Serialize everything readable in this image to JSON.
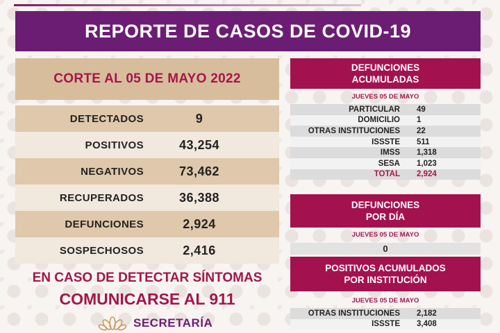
{
  "title": "REPORTE DE CASOS DE COVID-19",
  "cutoff": "CORTE AL 05 DE MAYO 2022",
  "stats": [
    {
      "label": "DETECTADOS",
      "value": "9"
    },
    {
      "label": "POSITIVOS",
      "value": "43,254"
    },
    {
      "label": "NEGATIVOS",
      "value": "73,462"
    },
    {
      "label": "RECUPERADOS",
      "value": "36,388"
    },
    {
      "label": "DEFUNCIONES",
      "value": "2,924"
    },
    {
      "label": "SOSPECHOSOS",
      "value": "2,416"
    }
  ],
  "warning": {
    "line1": "EN CASO DE DETECTAR SÍNTOMAS",
    "line2": "COMUNICARSE AL 911"
  },
  "logo": {
    "text": "SECRETARÍA"
  },
  "deaths_accum": {
    "title_l1": "DEFUNCIONES",
    "title_l2": "ACUMULADAS",
    "date": "JUEVES 05 DE MAYO",
    "rows": [
      {
        "label": "PARTICULAR",
        "value": "49"
      },
      {
        "label": "DOMICILIO",
        "value": "1"
      },
      {
        "label": "OTRAS INSTITUCIONES",
        "value": "22"
      },
      {
        "label": "ISSSTE",
        "value": "511"
      },
      {
        "label": "IMSS",
        "value": "1,318"
      },
      {
        "label": "SESA",
        "value": "1,023"
      },
      {
        "label": "TOTAL",
        "value": "2,924"
      }
    ]
  },
  "deaths_daily": {
    "title_l1": "DEFUNCIONES",
    "title_l2": "POR DÍA",
    "date": "JUEVES 05 DE MAYO",
    "value": "0"
  },
  "positives_inst": {
    "title_l1": "POSITIVOS ACUMULADOS",
    "title_l2": "POR INSTITUCIÓN",
    "date": "JUEVES 05 DE MAYO",
    "rows": [
      {
        "label": "OTRAS INSTITUCIONES",
        "value": "2,182"
      },
      {
        "label": "ISSSTE",
        "value": "3,408"
      }
    ]
  }
}
